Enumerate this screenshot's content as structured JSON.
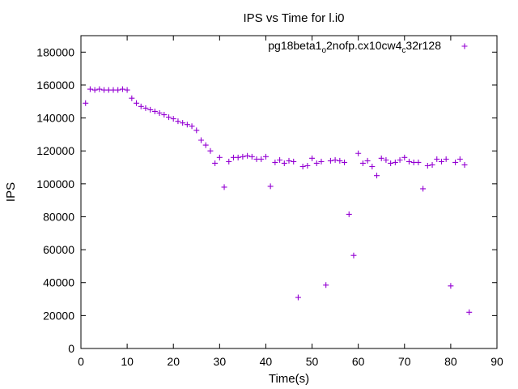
{
  "chart_data": {
    "type": "scatter",
    "title": "IPS vs Time for l.i0",
    "xlabel": "Time(s)",
    "ylabel": "IPS",
    "xlim": [
      0,
      90
    ],
    "ylim": [
      0,
      190000
    ],
    "xticks": [
      0,
      10,
      20,
      30,
      40,
      50,
      60,
      70,
      80,
      90
    ],
    "yticks": [
      0,
      20000,
      40000,
      60000,
      80000,
      100000,
      120000,
      140000,
      160000,
      180000
    ],
    "grid": false,
    "legend_position": "top-right",
    "marker": "+",
    "color": "#9400d3",
    "series": [
      {
        "name_parts": [
          "pg18beta1",
          "o",
          "2nofp.cx10cw4",
          "c",
          "32r128"
        ],
        "x": [
          1,
          2,
          3,
          4,
          5,
          6,
          7,
          8,
          9,
          10,
          11,
          12,
          13,
          14,
          15,
          16,
          17,
          18,
          19,
          20,
          21,
          22,
          23,
          24,
          25,
          26,
          27,
          28,
          29,
          30,
          31,
          32,
          33,
          34,
          35,
          36,
          37,
          38,
          39,
          40,
          41,
          42,
          43,
          44,
          45,
          46,
          47,
          48,
          49,
          50,
          51,
          52,
          53,
          54,
          55,
          56,
          57,
          58,
          59,
          60,
          61,
          62,
          63,
          64,
          65,
          66,
          67,
          68,
          69,
          70,
          71,
          72,
          73,
          74,
          75,
          76,
          77,
          78,
          79,
          80,
          81,
          82,
          83,
          84
        ],
        "y": [
          149000,
          157500,
          157000,
          157500,
          157000,
          157000,
          157000,
          157000,
          157500,
          157000,
          152000,
          149000,
          147000,
          146000,
          145000,
          144000,
          143000,
          142000,
          140500,
          139500,
          138000,
          137000,
          136000,
          135000,
          132500,
          126500,
          123500,
          120000,
          112500,
          116000,
          98000,
          113500,
          116000,
          116000,
          116500,
          117000,
          116500,
          115000,
          115000,
          116500,
          98500,
          113000,
          114500,
          112500,
          114000,
          113500,
          31000,
          110500,
          111000,
          115500,
          112500,
          113500,
          38500,
          114000,
          114500,
          114000,
          113000,
          81500,
          56500,
          118500,
          112500,
          114000,
          110500,
          105000,
          115500,
          114500,
          112500,
          113000,
          114500,
          116000,
          113500,
          113000,
          113000,
          97000,
          111000,
          111500,
          115000,
          113500,
          115000,
          38000,
          113000,
          115000,
          111500,
          22000
        ]
      }
    ]
  }
}
